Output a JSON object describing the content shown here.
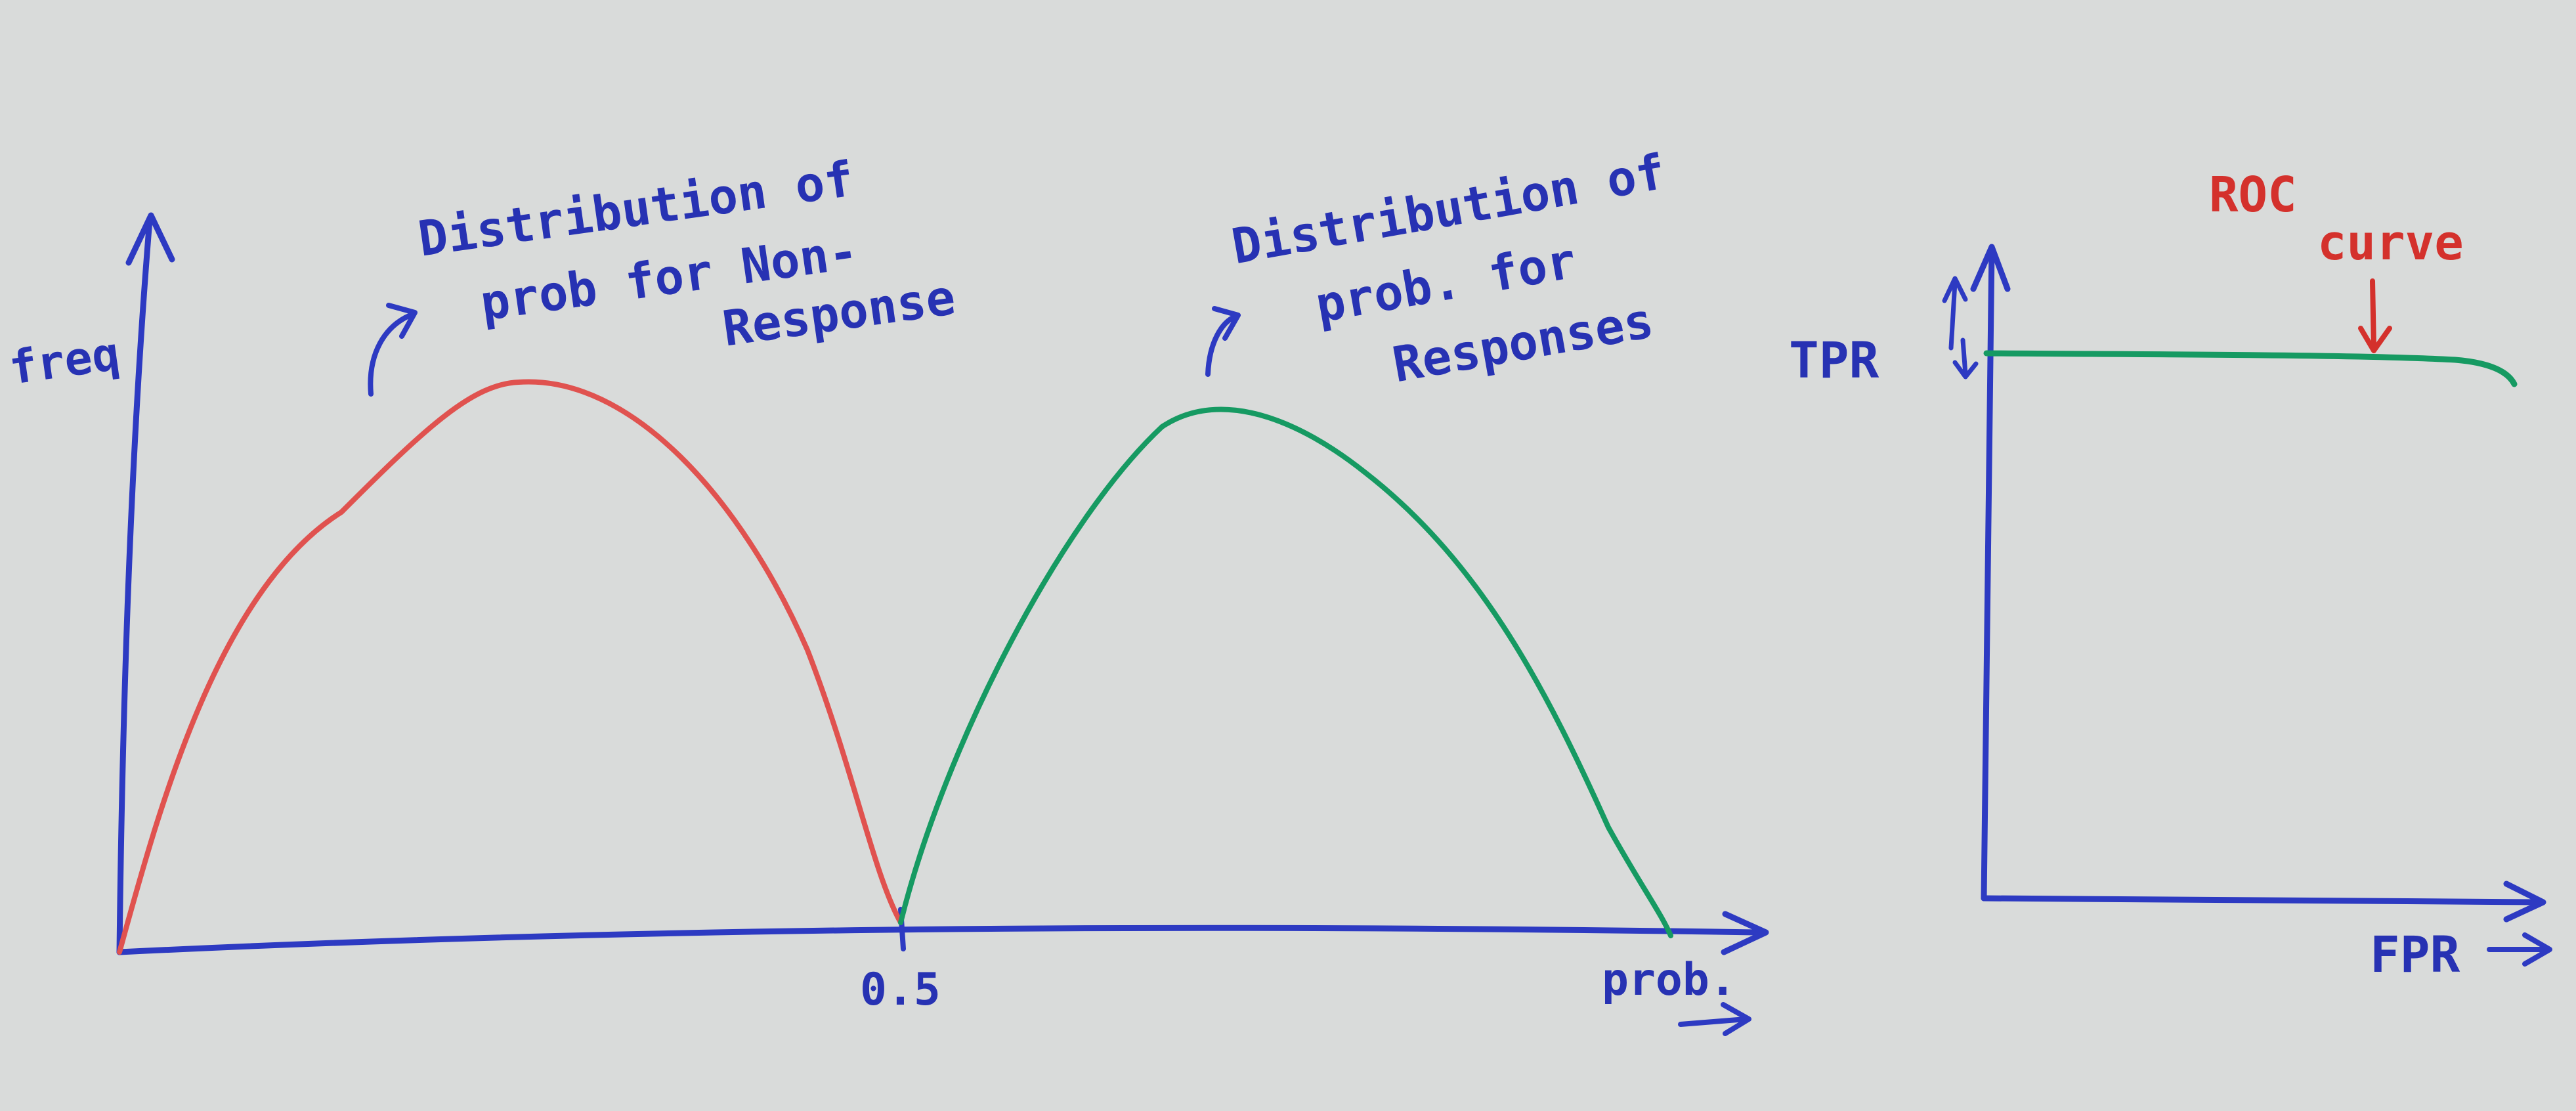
{
  "left_sketch": {
    "y_axis_label": "freq",
    "x_axis_label": "prob.",
    "threshold_label": "0.5",
    "annotation_non_response": [
      "Distribution of",
      "prob for Non-",
      "Response"
    ],
    "annotation_response": [
      "Distribution of",
      "prob. for",
      "Responses"
    ]
  },
  "roc_sketch": {
    "title": [
      "ROC",
      "curve"
    ],
    "y_axis_label": "TPR",
    "x_axis_label": "FPR"
  },
  "colors": {
    "paper": "#d9dbda",
    "axes_ink": "#2d3ac2",
    "non_response_curve": "#e0524f",
    "response_curve": "#169a62",
    "roc_label": "#d4312c"
  }
}
